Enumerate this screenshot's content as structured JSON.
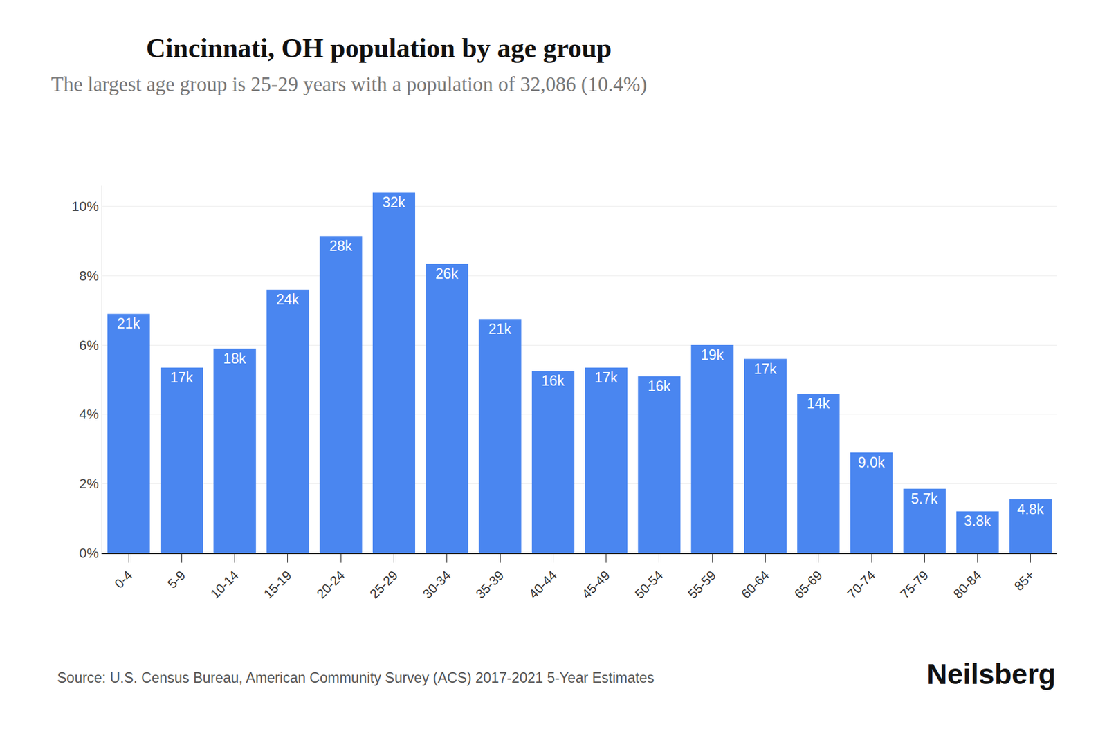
{
  "chart_data": {
    "type": "bar",
    "title": "Cincinnati, OH population by age group",
    "subtitle": "The largest age group is 25-29 years with a population of 32,086 (10.4%)",
    "categories": [
      "0-4",
      "5-9",
      "10-14",
      "15-19",
      "20-24",
      "25-29",
      "30-34",
      "35-39",
      "40-44",
      "45-49",
      "50-54",
      "55-59",
      "60-64",
      "65-69",
      "70-74",
      "75-79",
      "80-84",
      "85+"
    ],
    "values": [
      6.9,
      5.35,
      5.9,
      7.6,
      9.15,
      10.4,
      8.35,
      6.75,
      5.25,
      5.35,
      5.1,
      6.0,
      5.6,
      4.6,
      2.9,
      1.85,
      1.2,
      1.55
    ],
    "population_labels": [
      "21k",
      "17k",
      "18k",
      "24k",
      "28k",
      "32k",
      "26k",
      "21k",
      "16k",
      "17k",
      "16k",
      "19k",
      "17k",
      "14k",
      "9.0k",
      "5.7k",
      "3.8k",
      "4.8k"
    ],
    "color": "#4a86f0",
    "ylim": [
      0,
      10.6
    ],
    "yticks": [
      {
        "value": 0,
        "label": "0%"
      },
      {
        "value": 2,
        "label": "2%"
      },
      {
        "value": 4,
        "label": "4%"
      },
      {
        "value": 6,
        "label": "6%"
      },
      {
        "value": 8,
        "label": "8%"
      },
      {
        "value": 10,
        "label": "10%"
      }
    ],
    "grid": true,
    "source": "Source: U.S. Census Bureau, American Community Survey (ACS) 2017-2021 5-Year Estimates",
    "brand": "Neilsberg"
  }
}
